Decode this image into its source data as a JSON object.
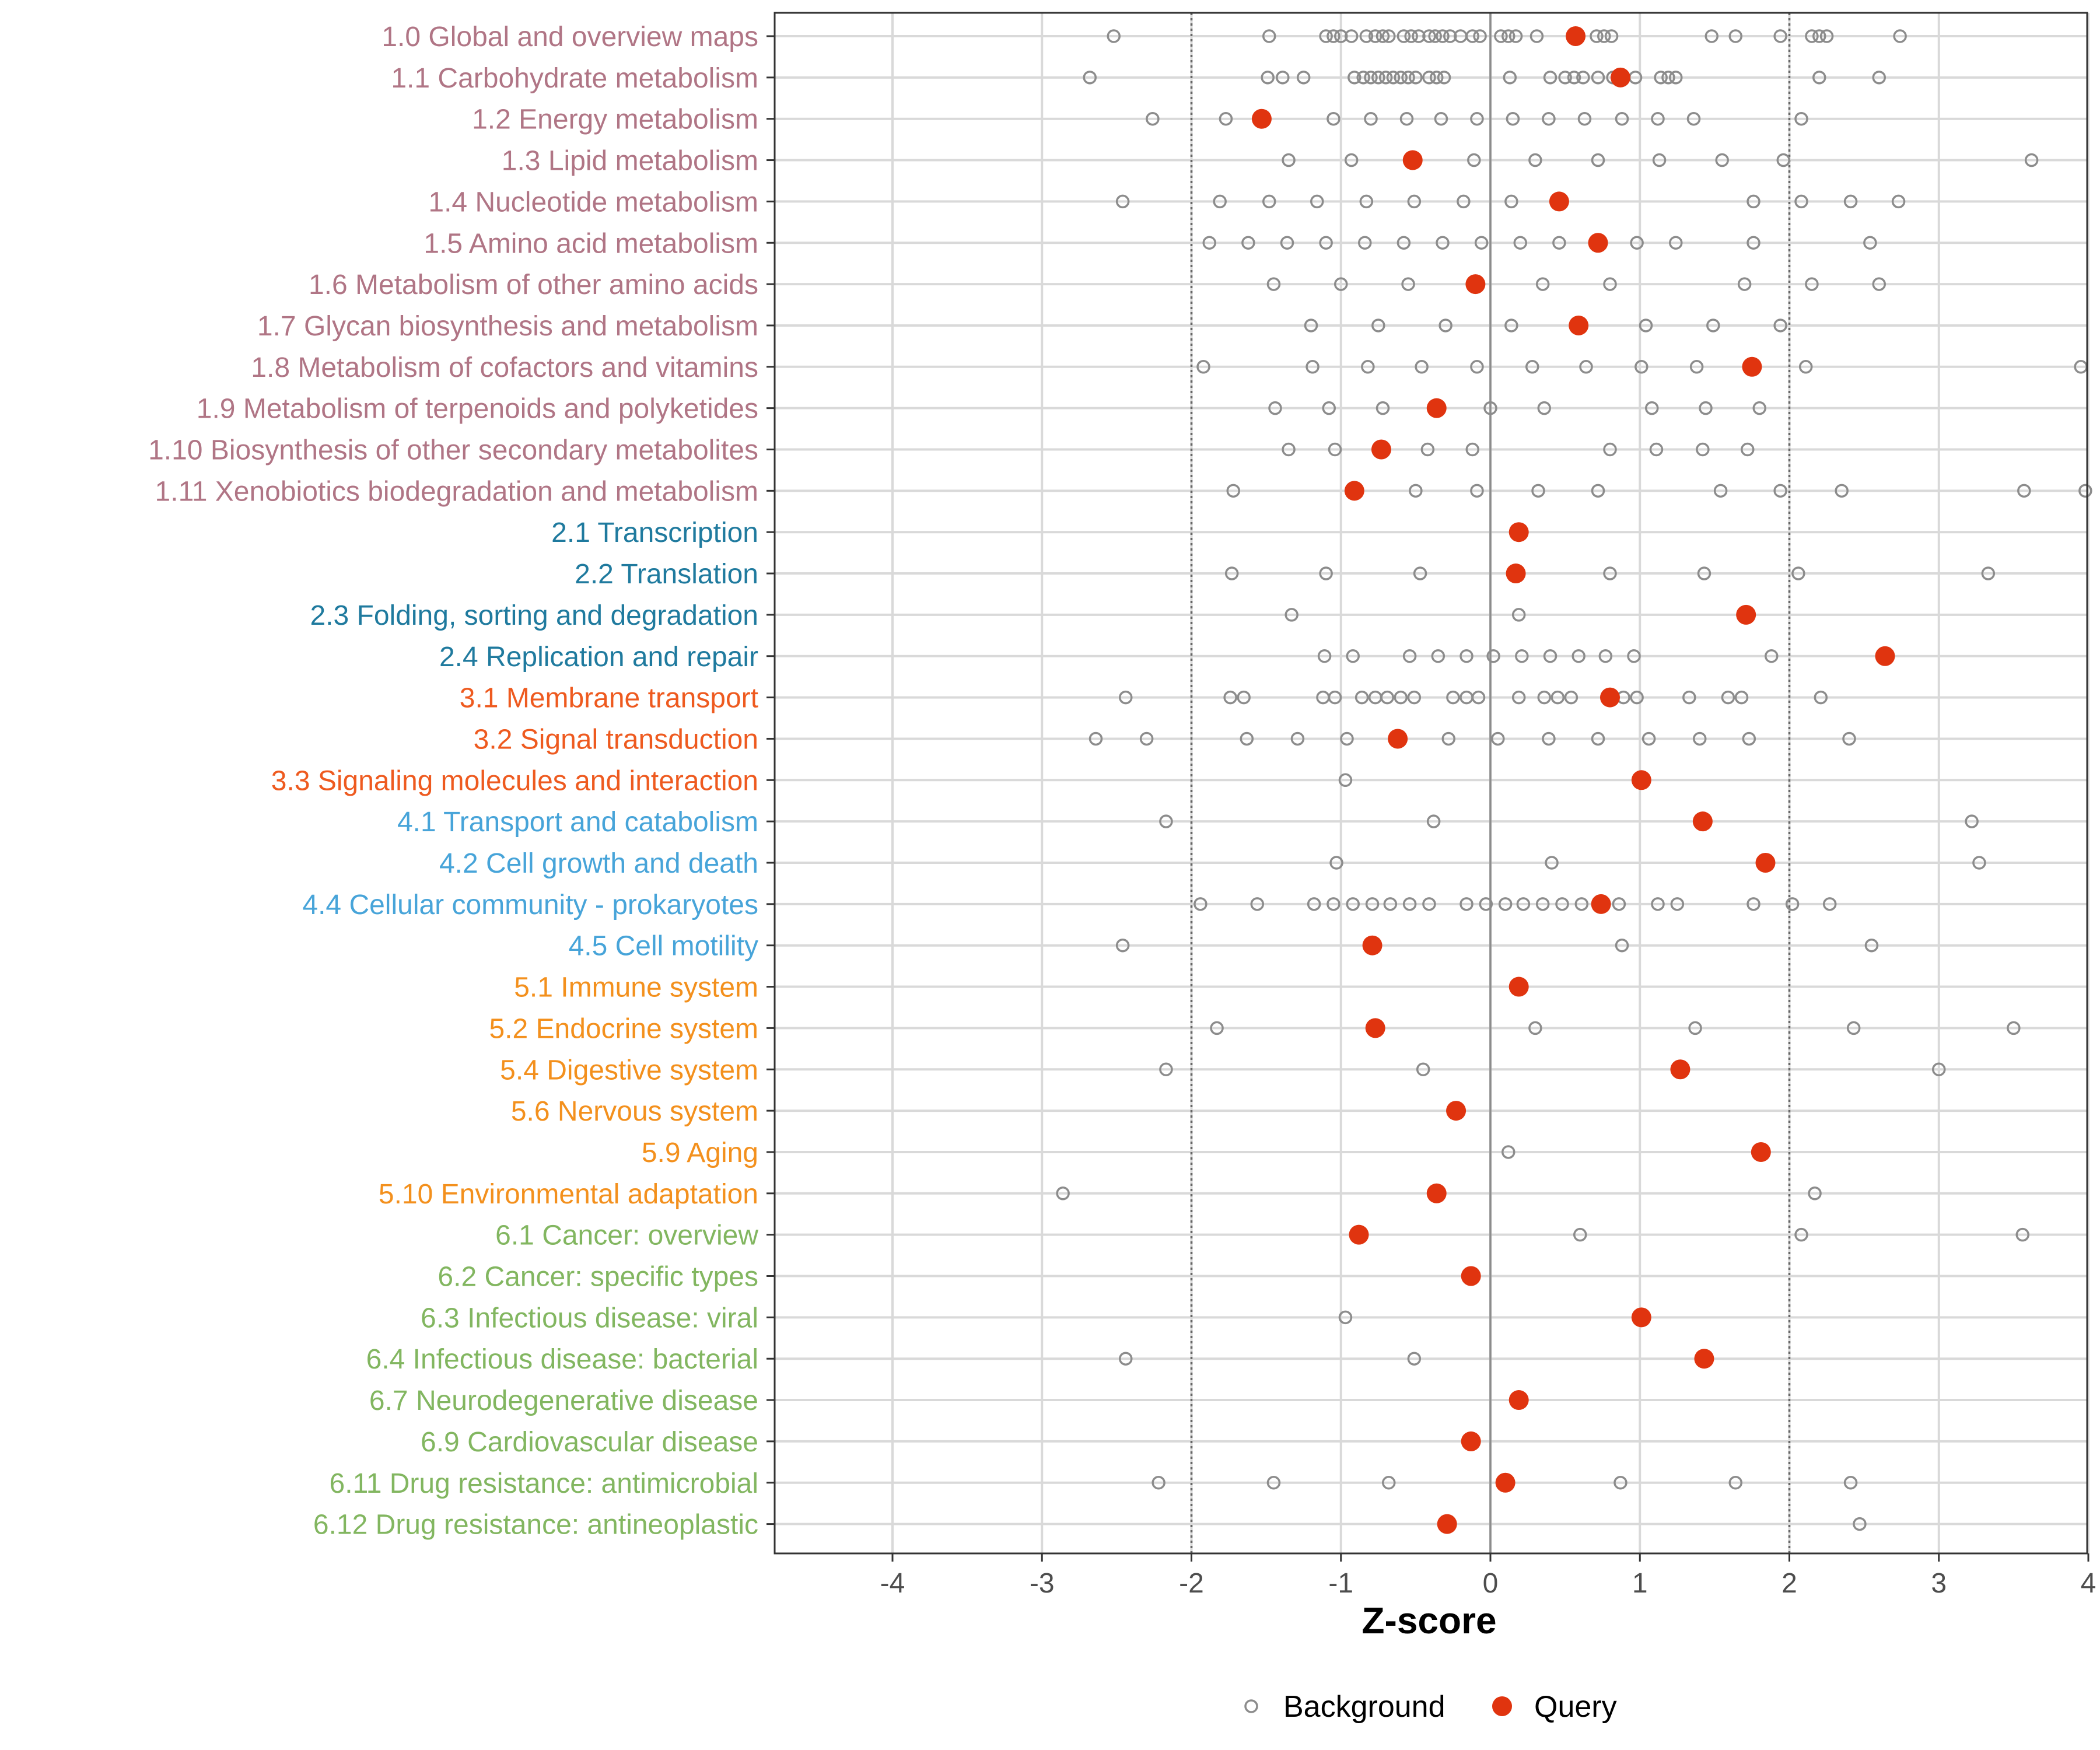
{
  "chart_data": {
    "type": "scatter",
    "title": "",
    "xlabel": "Z-score",
    "ylabel": "",
    "xlim": [
      -4.4,
      4.4
    ],
    "xticks": [
      -4,
      -3,
      -2,
      -1,
      0,
      1,
      2,
      3,
      4
    ],
    "xtick_labels": [
      "-4",
      "-3",
      "-2",
      "-1",
      "0",
      "1",
      "2",
      "3",
      "4"
    ],
    "reference_lines": {
      "solid": [
        0
      ],
      "dotted": [
        -2,
        2
      ]
    },
    "grid": true,
    "legend": {
      "placement": "bottom",
      "entries": [
        {
          "name": "Background",
          "marker": "open-circle",
          "color": "#8c8c8c"
        },
        {
          "name": "Query",
          "marker": "filled-circle",
          "color": "#e0340f"
        }
      ]
    },
    "group_colors": {
      "1": "#b07585",
      "2": "#1f7a9e",
      "3": "#ee5a1f",
      "4": "#47a4d9",
      "5": "#f3901d",
      "6": "#82b660"
    },
    "categories": [
      {
        "label": "1.0 Global and overview maps",
        "group": "1",
        "query": 0.57,
        "background": [
          -2.52,
          -1.48,
          -1.1,
          -1.05,
          -1.0,
          -0.93,
          -0.83,
          -0.77,
          -0.72,
          -0.68,
          -0.58,
          -0.53,
          -0.48,
          -0.41,
          -0.37,
          -0.32,
          -0.27,
          -0.2,
          -0.12,
          -0.07,
          0.07,
          0.12,
          0.17,
          0.31,
          0.71,
          0.76,
          0.81,
          1.48,
          1.64,
          1.94,
          2.15,
          2.2,
          2.25,
          2.74
        ]
      },
      {
        "label": "1.1 Carbohydrate metabolism",
        "group": "1",
        "query": 0.87,
        "background": [
          -2.68,
          -1.49,
          -1.39,
          -1.25,
          -0.91,
          -0.85,
          -0.8,
          -0.75,
          -0.7,
          -0.65,
          -0.6,
          -0.55,
          -0.5,
          -0.41,
          -0.36,
          -0.31,
          0.13,
          0.4,
          0.5,
          0.56,
          0.62,
          0.72,
          0.82,
          0.97,
          1.14,
          1.19,
          1.24,
          2.2,
          2.6
        ]
      },
      {
        "label": "1.2 Energy metabolism",
        "group": "1",
        "query": -1.53,
        "background": [
          -2.26,
          -1.77,
          -1.05,
          -0.8,
          -0.56,
          -0.33,
          -0.09,
          0.15,
          0.39,
          0.63,
          0.88,
          1.12,
          1.36,
          2.08
        ]
      },
      {
        "label": "1.3 Lipid metabolism",
        "group": "1",
        "query": -0.52,
        "background": [
          -1.35,
          -0.93,
          -0.11,
          0.3,
          0.72,
          1.13,
          1.55,
          1.96,
          3.62
        ]
      },
      {
        "label": "1.4 Nucleotide metabolism",
        "group": "1",
        "query": 0.46,
        "background": [
          -2.46,
          -1.81,
          -1.48,
          -1.16,
          -0.83,
          -0.51,
          -0.18,
          0.14,
          1.76,
          2.08,
          2.41,
          2.73
        ]
      },
      {
        "label": "1.5 Amino acid metabolism",
        "group": "1",
        "query": 0.72,
        "background": [
          -1.88,
          -1.62,
          -1.36,
          -1.1,
          -0.84,
          -0.58,
          -0.32,
          -0.06,
          0.2,
          0.46,
          0.98,
          1.24,
          1.76,
          2.54
        ]
      },
      {
        "label": "1.6 Metabolism of other amino acids",
        "group": "1",
        "query": -0.1,
        "background": [
          -1.45,
          -1.0,
          -0.55,
          0.35,
          0.8,
          1.7,
          2.15,
          2.6
        ]
      },
      {
        "label": "1.7 Glycan biosynthesis and metabolism",
        "group": "1",
        "query": 0.59,
        "background": [
          -1.2,
          -0.75,
          -0.3,
          0.14,
          1.04,
          1.49,
          1.94
        ]
      },
      {
        "label": "1.8 Metabolism of cofactors and vitamins",
        "group": "1",
        "query": 1.75,
        "background": [
          -1.92,
          -1.19,
          -0.82,
          -0.46,
          -0.09,
          0.28,
          0.64,
          1.01,
          1.38,
          2.11,
          3.95
        ]
      },
      {
        "label": "1.9 Metabolism of terpenoids and polyketides",
        "group": "1",
        "query": -0.36,
        "background": [
          -1.44,
          -1.08,
          -0.72,
          0.0,
          0.36,
          1.08,
          1.44,
          1.8
        ]
      },
      {
        "label": "1.10 Biosynthesis of other secondary metabolites",
        "group": "1",
        "query": -0.73,
        "background": [
          -1.35,
          -1.04,
          -0.42,
          -0.12,
          0.8,
          1.11,
          1.42,
          1.72
        ]
      },
      {
        "label": "1.11 Xenobiotics biodegradation and metabolism",
        "group": "1",
        "query": -0.91,
        "background": [
          -1.72,
          -0.5,
          -0.09,
          0.32,
          0.72,
          1.54,
          1.94,
          2.35,
          3.57,
          3.98
        ]
      },
      {
        "label": "2.1 Transcription",
        "group": "2",
        "query": 0.19,
        "background": []
      },
      {
        "label": "2.2 Translation",
        "group": "2",
        "query": 0.17,
        "background": [
          -1.73,
          -1.1,
          -0.47,
          0.8,
          1.43,
          2.06,
          3.33
        ]
      },
      {
        "label": "2.3 Folding, sorting and degradation",
        "group": "2",
        "query": 1.71,
        "background": [
          -1.33,
          0.19
        ]
      },
      {
        "label": "2.4 Replication and repair",
        "group": "2",
        "query": 2.64,
        "background": [
          -1.11,
          -0.92,
          -0.54,
          -0.35,
          -0.16,
          0.02,
          0.21,
          0.4,
          0.59,
          0.77,
          0.96,
          1.88
        ]
      },
      {
        "label": "3.1 Membrane transport",
        "group": "3",
        "query": 0.8,
        "background": [
          -2.44,
          -1.74,
          -1.65,
          -1.12,
          -1.04,
          -0.86,
          -0.77,
          -0.69,
          -0.6,
          -0.51,
          -0.25,
          -0.16,
          -0.08,
          0.19,
          0.36,
          0.45,
          0.54,
          0.89,
          0.98,
          1.33,
          1.59,
          1.68,
          2.21
        ]
      },
      {
        "label": "3.2 Signal transduction",
        "group": "3",
        "query": -0.62,
        "background": [
          -2.64,
          -2.3,
          -1.63,
          -1.29,
          -0.96,
          -0.28,
          0.05,
          0.39,
          0.72,
          1.06,
          1.4,
          1.73,
          2.4
        ]
      },
      {
        "label": "3.3 Signaling molecules and interaction",
        "group": "3",
        "query": 1.01,
        "background": [
          -0.97
        ]
      },
      {
        "label": "4.1 Transport and catabolism",
        "group": "4",
        "query": 1.42,
        "background": [
          -2.17,
          -0.38,
          3.22
        ]
      },
      {
        "label": "4.2 Cell growth and death",
        "group": "4",
        "query": 1.84,
        "background": [
          -1.03,
          0.41,
          3.27
        ]
      },
      {
        "label": "4.4 Cellular community - prokaryotes",
        "group": "4",
        "query": 0.74,
        "background": [
          -1.94,
          -1.56,
          -1.18,
          -1.05,
          -0.92,
          -0.79,
          -0.67,
          -0.54,
          -0.41,
          -0.16,
          -0.03,
          0.1,
          0.22,
          0.35,
          0.48,
          0.61,
          0.86,
          1.12,
          1.25,
          1.76,
          2.02,
          2.27
        ]
      },
      {
        "label": "4.5 Cell motility",
        "group": "4",
        "query": -0.79,
        "background": [
          -2.46,
          0.88,
          2.55
        ]
      },
      {
        "label": "5.1 Immune system",
        "group": "5",
        "query": 0.19,
        "background": []
      },
      {
        "label": "5.2 Endocrine system",
        "group": "5",
        "query": -0.77,
        "background": [
          -1.83,
          0.3,
          1.37,
          2.43,
          3.5
        ]
      },
      {
        "label": "5.4 Digestive system",
        "group": "5",
        "query": 1.27,
        "background": [
          -2.17,
          -0.45,
          3.0
        ]
      },
      {
        "label": "5.6 Nervous system",
        "group": "5",
        "query": -0.23,
        "background": []
      },
      {
        "label": "5.9 Aging",
        "group": "5",
        "query": 1.81,
        "background": [
          0.12
        ]
      },
      {
        "label": "5.10 Environmental adaptation",
        "group": "5",
        "query": -0.36,
        "background": [
          -2.86,
          2.17
        ]
      },
      {
        "label": "6.1 Cancer: overview",
        "group": "6",
        "query": -0.88,
        "background": [
          0.6,
          2.08,
          3.56
        ]
      },
      {
        "label": "6.2 Cancer: specific types",
        "group": "6",
        "query": -0.13,
        "background": []
      },
      {
        "label": "6.3 Infectious disease: viral",
        "group": "6",
        "query": 1.01,
        "background": [
          -0.97
        ]
      },
      {
        "label": "6.4 Infectious disease: bacterial",
        "group": "6",
        "query": 1.43,
        "background": [
          -2.44,
          -0.51
        ]
      },
      {
        "label": "6.7 Neurodegenerative disease",
        "group": "6",
        "query": 0.19,
        "background": []
      },
      {
        "label": "6.9 Cardiovascular disease",
        "group": "6",
        "query": -0.13,
        "background": []
      },
      {
        "label": "6.11 Drug resistance: antimicrobial",
        "group": "6",
        "query": 0.1,
        "background": [
          -2.22,
          -1.45,
          -0.68,
          0.87,
          1.64,
          2.41
        ]
      },
      {
        "label": "6.12 Drug resistance: antineoplastic",
        "group": "6",
        "query": -0.29,
        "background": [
          2.47
        ]
      }
    ]
  }
}
